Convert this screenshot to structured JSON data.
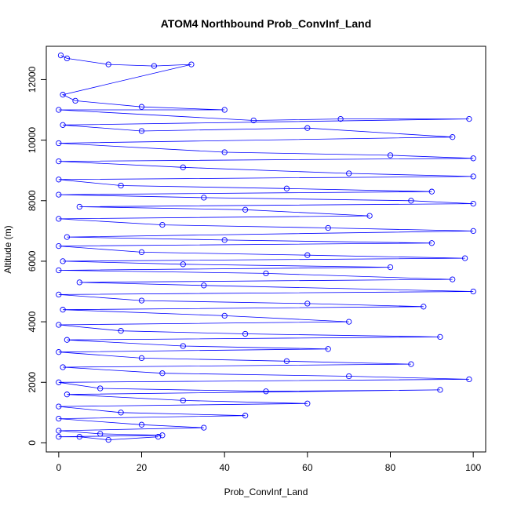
{
  "chart_data": {
    "type": "line",
    "title": "ATOM4 Northbound Prob_ConvInf_Land",
    "xlabel": "Prob_ConvInf_Land",
    "ylabel": "Altitude (m)",
    "xlim": [
      -3,
      103
    ],
    "ylim": [
      -300,
      13100
    ],
    "xticks": [
      0,
      20,
      40,
      60,
      80,
      100
    ],
    "yticks": [
      0,
      2000,
      4000,
      6000,
      8000,
      10000,
      12000
    ],
    "grid": false,
    "marker": "open-circle",
    "series_color": "#0000ff",
    "series": [
      {
        "values_note": "",
        "points": [
          [
            0.5,
            12800
          ],
          [
            2,
            12700
          ],
          [
            12,
            12500
          ],
          [
            23,
            12450
          ],
          [
            32,
            12500
          ],
          [
            1,
            11500
          ],
          [
            4,
            11300
          ],
          [
            20,
            11100
          ],
          [
            40,
            11000
          ],
          [
            0,
            11000
          ],
          [
            47,
            10650
          ],
          [
            68,
            10700
          ],
          [
            99,
            10700
          ],
          [
            1,
            10500
          ],
          [
            20,
            10300
          ],
          [
            60,
            10400
          ],
          [
            95,
            10100
          ],
          [
            0,
            9900
          ],
          [
            40,
            9600
          ],
          [
            80,
            9500
          ],
          [
            100,
            9400
          ],
          [
            0,
            9300
          ],
          [
            30,
            9100
          ],
          [
            70,
            8900
          ],
          [
            100,
            8800
          ],
          [
            0,
            8700
          ],
          [
            15,
            8500
          ],
          [
            55,
            8400
          ],
          [
            90,
            8300
          ],
          [
            0,
            8200
          ],
          [
            35,
            8100
          ],
          [
            85,
            8000
          ],
          [
            100,
            7900
          ],
          [
            5,
            7800
          ],
          [
            45,
            7700
          ],
          [
            75,
            7500
          ],
          [
            0,
            7400
          ],
          [
            25,
            7200
          ],
          [
            65,
            7100
          ],
          [
            100,
            7000
          ],
          [
            2,
            6800
          ],
          [
            40,
            6700
          ],
          [
            90,
            6600
          ],
          [
            0,
            6500
          ],
          [
            20,
            6300
          ],
          [
            60,
            6200
          ],
          [
            98,
            6100
          ],
          [
            1,
            6000
          ],
          [
            30,
            5900
          ],
          [
            80,
            5800
          ],
          [
            0,
            5700
          ],
          [
            50,
            5600
          ],
          [
            95,
            5400
          ],
          [
            5,
            5300
          ],
          [
            35,
            5200
          ],
          [
            100,
            5000
          ],
          [
            0,
            4900
          ],
          [
            20,
            4700
          ],
          [
            60,
            4600
          ],
          [
            88,
            4500
          ],
          [
            1,
            4400
          ],
          [
            40,
            4200
          ],
          [
            70,
            4000
          ],
          [
            0,
            3900
          ],
          [
            15,
            3700
          ],
          [
            45,
            3600
          ],
          [
            92,
            3500
          ],
          [
            2,
            3400
          ],
          [
            30,
            3200
          ],
          [
            65,
            3100
          ],
          [
            0,
            3000
          ],
          [
            20,
            2800
          ],
          [
            55,
            2700
          ],
          [
            85,
            2600
          ],
          [
            1,
            2500
          ],
          [
            25,
            2300
          ],
          [
            70,
            2200
          ],
          [
            99,
            2100
          ],
          [
            0,
            2000
          ],
          [
            10,
            1800
          ],
          [
            50,
            1700
          ],
          [
            92,
            1750
          ],
          [
            2,
            1600
          ],
          [
            30,
            1400
          ],
          [
            60,
            1300
          ],
          [
            0,
            1200
          ],
          [
            15,
            1000
          ],
          [
            45,
            900
          ],
          [
            0,
            800
          ],
          [
            20,
            600
          ],
          [
            35,
            500
          ],
          [
            0,
            400
          ],
          [
            10,
            300
          ],
          [
            25,
            250
          ],
          [
            0,
            200
          ],
          [
            5,
            200
          ],
          [
            12,
            100
          ],
          [
            24,
            200
          ]
        ]
      }
    ]
  }
}
